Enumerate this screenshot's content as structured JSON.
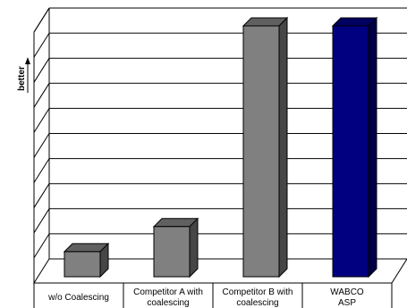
{
  "chart_data": {
    "type": "bar",
    "ylabel": "better",
    "categories": [
      [
        "w/o Coalescing"
      ],
      [
        "Competitor A with",
        "coalescing"
      ],
      [
        "Competitor B with",
        "coalescing"
      ],
      [
        "WABCO",
        "ASP"
      ]
    ],
    "values": [
      1,
      2,
      10,
      10
    ],
    "ylim": [
      0,
      10
    ],
    "y_ticks_labeled": false,
    "grid": true,
    "legend": "none",
    "colors": [
      "#808080",
      "#808080",
      "#808080",
      "#000080"
    ]
  }
}
